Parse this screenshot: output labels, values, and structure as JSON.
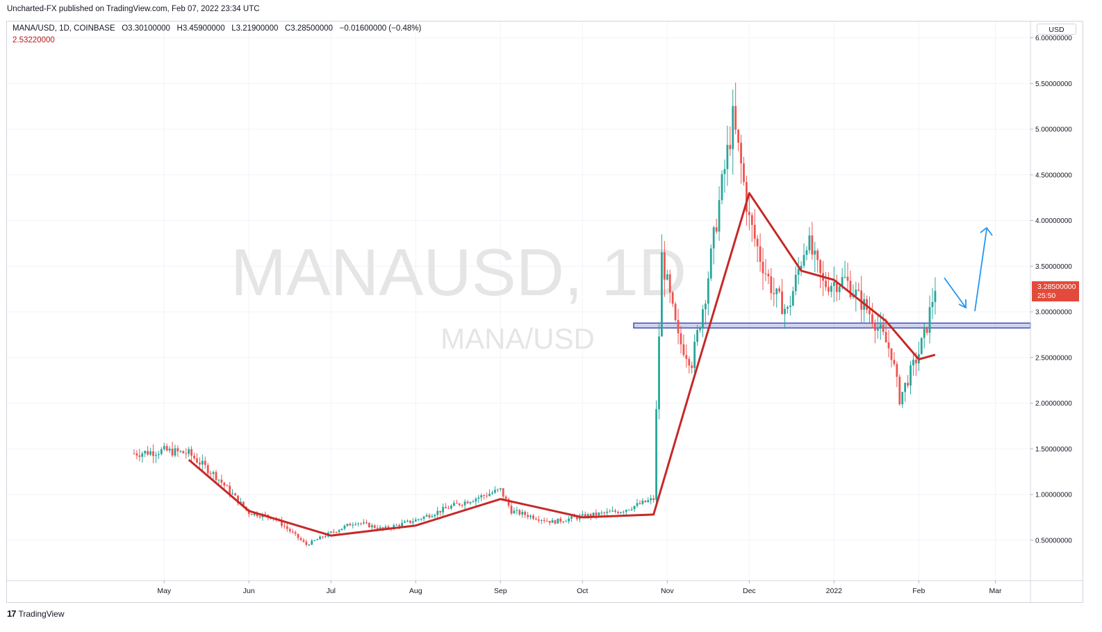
{
  "header": {
    "publish_line": "Uncharted-FX published on TradingView.com, Feb 07, 2022 23:34 UTC"
  },
  "legend": {
    "symbol": "MANA/USD, 1D, COINBASE",
    "open_label": "O",
    "open": "3.30100000",
    "high_label": "H",
    "high": "3.45900000",
    "low_label": "L",
    "low": "3.21900000",
    "close_label": "C",
    "close": "3.28500000",
    "change": "−0.01600000 (−0.48%)",
    "ma_value": "2.53220000"
  },
  "watermark": {
    "main": "MANAUSD, 1D",
    "sub": "MANA/USD"
  },
  "price_axis": {
    "currency": "USD",
    "ticks": [
      "6.00000000",
      "5.50000000",
      "5.00000000",
      "4.50000000",
      "4.00000000",
      "3.50000000",
      "3.00000000",
      "2.50000000",
      "2.00000000",
      "1.50000000",
      "1.00000000",
      "0.50000000"
    ],
    "last_price": "3.28500000",
    "countdown": "25:50"
  },
  "footer": {
    "logo": "17",
    "brand": "TradingView"
  },
  "colors": {
    "up": "#26a69a",
    "down": "#ef5350",
    "ma": "#c62828",
    "support": "#3f51b5",
    "arrow": "#2196f3",
    "tag": "#e34a3b"
  },
  "chart_data": {
    "type": "candlestick",
    "title": "MANA/USD, 1D, COINBASE",
    "x_labels": [
      "May",
      "Jun",
      "Jul",
      "Aug",
      "Sep",
      "Oct",
      "Nov",
      "Dec",
      "2022",
      "Feb",
      "Mar"
    ],
    "ylim": [
      0.1,
      6.1
    ],
    "grid": true,
    "series": [
      {
        "name": "close",
        "x": [
          "2021-04-20",
          "2021-05-01",
          "2021-05-10",
          "2021-05-20",
          "2021-06-01",
          "2021-06-10",
          "2021-06-22",
          "2021-07-01",
          "2021-07-10",
          "2021-07-20",
          "2021-08-01",
          "2021-08-15",
          "2021-09-01",
          "2021-09-05",
          "2021-09-20",
          "2021-10-01",
          "2021-10-15",
          "2021-10-27",
          "2021-10-28",
          "2021-10-30",
          "2021-11-05",
          "2021-11-10",
          "2021-11-15",
          "2021-11-20",
          "2021-11-25",
          "2021-11-28",
          "2021-12-01",
          "2021-12-05",
          "2021-12-10",
          "2021-12-15",
          "2021-12-22",
          "2021-12-28",
          "2022-01-05",
          "2022-01-15",
          "2022-01-22",
          "2022-01-25",
          "2022-02-01",
          "2022-02-04",
          "2022-02-07"
        ],
        "values": [
          1.45,
          1.48,
          1.45,
          1.2,
          0.8,
          0.75,
          0.45,
          0.58,
          0.7,
          0.62,
          0.72,
          0.88,
          1.05,
          0.82,
          0.7,
          0.76,
          0.82,
          0.95,
          1.9,
          3.6,
          2.7,
          2.45,
          3.2,
          4.2,
          5.1,
          4.6,
          4.0,
          3.6,
          3.2,
          3.0,
          3.8,
          3.3,
          3.35,
          2.95,
          2.55,
          2.05,
          2.55,
          2.85,
          3.285
        ]
      },
      {
        "name": "MA",
        "x": [
          "2021-05-10",
          "2021-06-01",
          "2021-07-01",
          "2021-08-01",
          "2021-09-01",
          "2021-10-01",
          "2021-10-27",
          "2021-11-10",
          "2021-11-20",
          "2021-12-01",
          "2021-12-20",
          "2022-01-01",
          "2022-01-20",
          "2022-02-01",
          "2022-02-07"
        ],
        "values": [
          1.38,
          0.82,
          0.55,
          0.66,
          0.95,
          0.75,
          0.78,
          2.2,
          3.2,
          4.3,
          3.45,
          3.35,
          2.9,
          2.48,
          2.53
        ]
      }
    ],
    "annotations": {
      "support_level": 2.85
    }
  }
}
